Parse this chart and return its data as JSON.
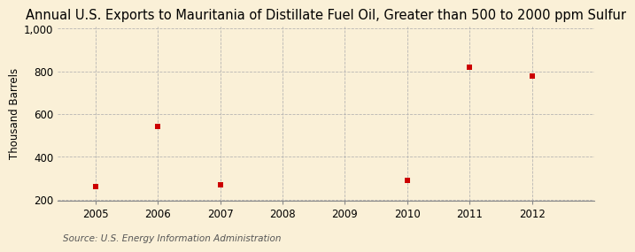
{
  "title": "Annual U.S. Exports to Mauritania of Distillate Fuel Oil, Greater than 500 to 2000 ppm Sulfur",
  "ylabel": "Thousand Barrels",
  "source": "Source: U.S. Energy Information Administration",
  "x_data": [
    2005,
    2006,
    2007,
    2010,
    2011,
    2012
  ],
  "y_data": [
    260,
    540,
    270,
    290,
    820,
    780
  ],
  "x_ticks": [
    2005,
    2006,
    2007,
    2008,
    2009,
    2010,
    2011,
    2012
  ],
  "y_ticks": [
    200,
    400,
    600,
    800,
    1000
  ],
  "ylim": [
    195,
    1010
  ],
  "xlim": [
    2004.4,
    2013.0
  ],
  "marker_color": "#cc0000",
  "marker": "s",
  "marker_size": 4,
  "bg_color": "#faf0d7",
  "grid_color": "#b0b0b0",
  "title_fontsize": 10.5,
  "label_fontsize": 8.5,
  "tick_fontsize": 8.5,
  "source_fontsize": 7.5
}
